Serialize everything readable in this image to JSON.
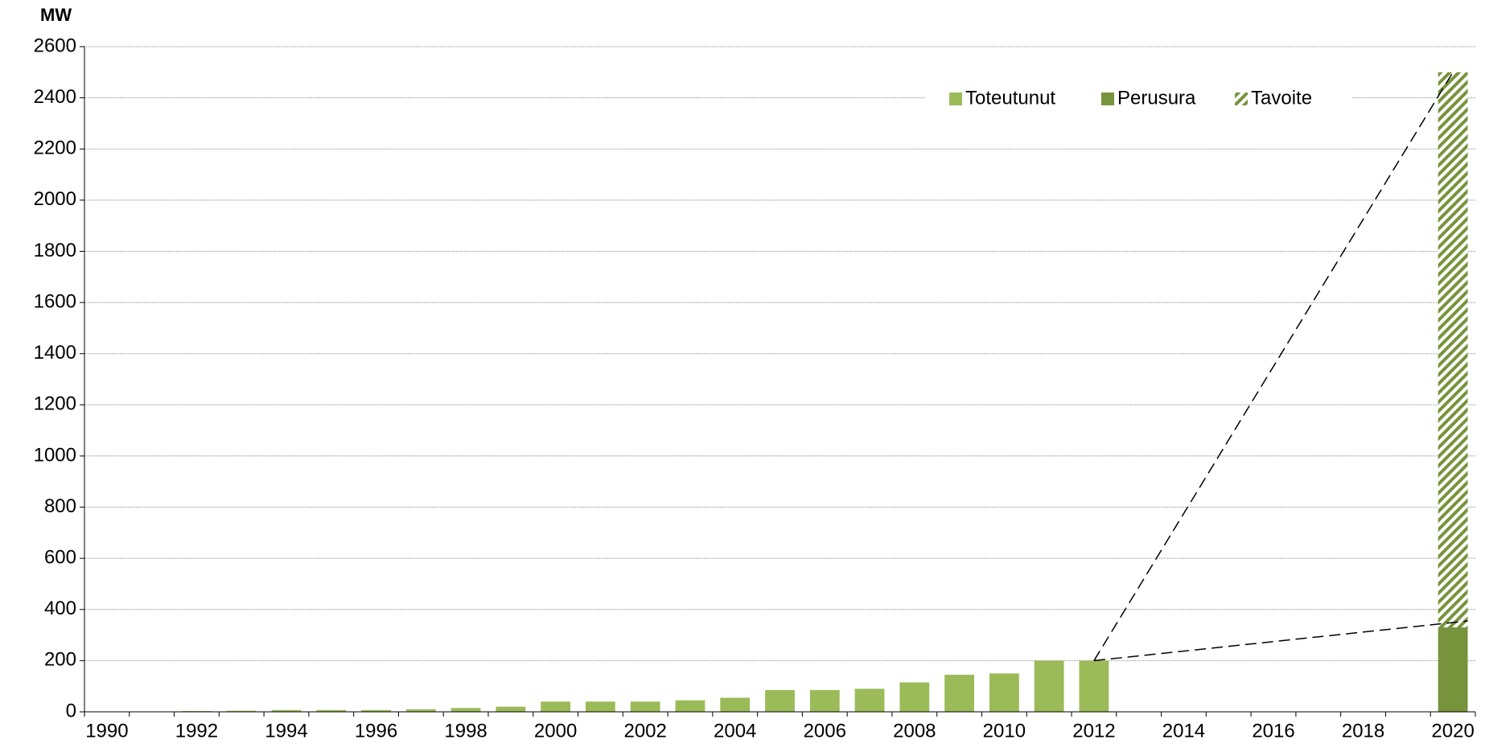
{
  "chart_data": {
    "type": "bar",
    "stacked": true,
    "y_label": "MW",
    "categories": [
      "1990",
      null,
      "1992",
      null,
      "1994",
      null,
      "1996",
      null,
      "1998",
      null,
      "2000",
      null,
      "2002",
      null,
      "2004",
      null,
      "2006",
      null,
      "2008",
      null,
      "2010",
      null,
      "2012",
      null,
      "2014",
      null,
      "2016",
      null,
      "2018",
      null,
      "2020"
    ],
    "series": [
      {
        "name": "Toteutunut",
        "color": "#9bbb59",
        "values": [
          0,
          0,
          3,
          4,
          7,
          7,
          7,
          10,
          15,
          20,
          40,
          40,
          40,
          45,
          55,
          85,
          85,
          90,
          115,
          145,
          150,
          200,
          200,
          null,
          null,
          null,
          null,
          null,
          null,
          null,
          null
        ]
      },
      {
        "name": "Perusura",
        "color": "#77933c",
        "values": [
          null,
          null,
          null,
          null,
          null,
          null,
          null,
          null,
          null,
          null,
          null,
          null,
          null,
          null,
          null,
          null,
          null,
          null,
          null,
          null,
          null,
          null,
          null,
          null,
          null,
          null,
          null,
          null,
          null,
          null,
          330
        ]
      },
      {
        "name": "Tavoite",
        "color": "#77933c",
        "pattern": "hatched",
        "values": [
          null,
          null,
          null,
          null,
          null,
          null,
          null,
          null,
          null,
          null,
          null,
          null,
          null,
          null,
          null,
          null,
          null,
          null,
          null,
          null,
          null,
          null,
          null,
          null,
          null,
          null,
          null,
          null,
          null,
          null,
          2170
        ]
      }
    ],
    "ylim": [
      0,
      2600
    ],
    "yticks": [
      0,
      200,
      400,
      600,
      800,
      1000,
      1200,
      1400,
      1600,
      1800,
      2000,
      2200,
      2400,
      2600
    ],
    "grid": true,
    "legend": "top-right"
  }
}
